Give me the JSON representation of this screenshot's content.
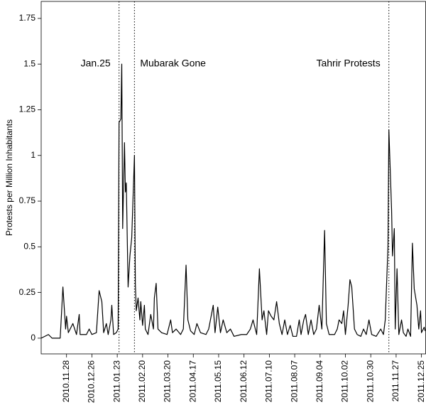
{
  "chart_data": {
    "type": "line",
    "ylabel": "Protests per Million Inhabitants",
    "xlim": [
      "2010.10.31",
      "2011.12.30"
    ],
    "ylim": [
      -0.086,
      1.843
    ],
    "yticks": [
      0,
      0.25,
      0.5,
      0.75,
      1,
      1.25,
      1.5,
      1.75
    ],
    "xticks": [
      "2010.11.28",
      "2010.12.26",
      "2011.01.23",
      "2011.02.20",
      "2011.03.20",
      "2011.04.17",
      "2011.05.15",
      "2011.06.12",
      "2011.07.10",
      "2011.08.07",
      "2011.09.04",
      "2011.10.02",
      "2011.10.30",
      "2011.11.27",
      "2011.12.25"
    ],
    "grid": false,
    "events": [
      {
        "x": "2011.01.25",
        "label": "Jan.25",
        "side": "left"
      },
      {
        "x": "2011.02.11",
        "label": "Mubarak Gone",
        "side": "right"
      },
      {
        "x": "2011.11.19",
        "label": "Tahrir Protests",
        "side": "left"
      }
    ],
    "series": [
      {
        "color": "#000000",
        "x": [
          "2010.10.31",
          "2010.11.08",
          "2010.11.12",
          "2010.11.21",
          "2010.11.24",
          "2010.11.27",
          "2010.11.28",
          "2010.11.30",
          "2010.12.05",
          "2010.12.09",
          "2010.12.12",
          "2010.12.13",
          "2010.12.20",
          "2010.12.23",
          "2010.12.26",
          "2010.12.31",
          "2011.01.03",
          "2011.01.06",
          "2011.01.08",
          "2011.01.11",
          "2011.01.13",
          "2011.01.16",
          "2011.01.17",
          "2011.01.19",
          "2011.01.22",
          "2011.01.24",
          "2011.01.25",
          "2011.01.27",
          "2011.01.28",
          "2011.01.29",
          "2011.01.31",
          "2011.02.01",
          "2011.02.02",
          "2011.02.04",
          "2011.02.06",
          "2011.02.08",
          "2011.02.11",
          "2011.02.12",
          "2011.02.13",
          "2011.02.15",
          "2011.02.17",
          "2011.02.18",
          "2011.02.20",
          "2011.02.22",
          "2011.02.23",
          "2011.02.26",
          "2011.03.01",
          "2011.03.04",
          "2011.03.05",
          "2011.03.07",
          "2011.03.09",
          "2011.03.13",
          "2011.03.19",
          "2011.03.23",
          "2011.03.25",
          "2011.03.29",
          "2011.04.03",
          "2011.04.06",
          "2011.04.09",
          "2011.04.11",
          "2011.04.14",
          "2011.04.18",
          "2011.04.21",
          "2011.04.25",
          "2011.05.01",
          "2011.05.04",
          "2011.05.09",
          "2011.05.11",
          "2011.05.14",
          "2011.05.17",
          "2011.05.20",
          "2011.05.24",
          "2011.05.28",
          "2011.06.01",
          "2011.06.09",
          "2011.06.15",
          "2011.06.19",
          "2011.06.22",
          "2011.06.26",
          "2011.06.29",
          "2011.07.02",
          "2011.07.04",
          "2011.07.07",
          "2011.07.09",
          "2011.07.12",
          "2011.07.15",
          "2011.07.18",
          "2011.07.21",
          "2011.07.24",
          "2011.07.27",
          "2011.07.30",
          "2011.08.02",
          "2011.08.05",
          "2011.08.09",
          "2011.08.12",
          "2011.08.14",
          "2011.08.17",
          "2011.08.19",
          "2011.08.22",
          "2011.08.25",
          "2011.08.28",
          "2011.08.31",
          "2011.09.03",
          "2011.09.06",
          "2011.09.09",
          "2011.09.11",
          "2011.09.14",
          "2011.09.20",
          "2011.09.23",
          "2011.09.25",
          "2011.09.28",
          "2011.09.30",
          "2011.10.02",
          "2011.10.05",
          "2011.10.07",
          "2011.10.09",
          "2011.10.12",
          "2011.10.15",
          "2011.10.19",
          "2011.10.22",
          "2011.10.25",
          "2011.10.28",
          "2011.10.31",
          "2011.11.05",
          "2011.11.10",
          "2011.11.13",
          "2011.11.15",
          "2011.11.18",
          "2011.11.19",
          "2011.11.22",
          "2011.11.23",
          "2011.11.25",
          "2011.11.26",
          "2011.11.28",
          "2011.11.30",
          "2011.12.03",
          "2011.12.05",
          "2011.12.08",
          "2011.12.10",
          "2011.12.13",
          "2011.12.15",
          "2011.12.17",
          "2011.12.20",
          "2011.12.22",
          "2011.12.24",
          "2011.12.25",
          "2011.12.28",
          "2011.12.29"
        ],
        "values": [
          0,
          0.02,
          0,
          0,
          0.28,
          0.05,
          0.12,
          0.03,
          0.08,
          0.02,
          0.13,
          0.02,
          0.02,
          0.05,
          0.02,
          0.03,
          0.26,
          0.2,
          0.03,
          0.08,
          0.02,
          0.1,
          0.18,
          0.02,
          0.03,
          0.05,
          1.18,
          1.2,
          1.5,
          0.6,
          1.07,
          0.8,
          0.85,
          0.28,
          0.45,
          0.55,
          1.0,
          0.3,
          0.15,
          0.22,
          0.1,
          0.2,
          0.07,
          0.18,
          0.05,
          0.02,
          0.13,
          0.05,
          0.22,
          0.3,
          0.05,
          0.03,
          0.02,
          0.1,
          0.03,
          0.05,
          0.02,
          0.05,
          0.4,
          0.1,
          0.04,
          0.02,
          0.08,
          0.03,
          0.02,
          0.05,
          0.18,
          0.03,
          0.17,
          0.03,
          0.1,
          0.03,
          0.05,
          0.01,
          0.02,
          0.02,
          0.05,
          0.1,
          0.02,
          0.38,
          0.1,
          0.15,
          0.02,
          0.15,
          0.12,
          0.1,
          0.2,
          0.08,
          0.02,
          0.1,
          0.02,
          0.07,
          0.01,
          0.01,
          0.1,
          0.02,
          0.1,
          0.13,
          0.02,
          0.1,
          0.02,
          0.05,
          0.18,
          0.05,
          0.59,
          0.08,
          0.02,
          0.02,
          0.05,
          0.1,
          0.08,
          0.15,
          0.02,
          0.18,
          0.32,
          0.28,
          0.05,
          0.02,
          0.01,
          0.05,
          0.02,
          0.1,
          0.02,
          0.01,
          0.05,
          0.02,
          0.1,
          0.5,
          1.14,
          0.7,
          0.45,
          0.6,
          0.05,
          0.38,
          0.02,
          0.1,
          0.03,
          0.01,
          0.05,
          0.01,
          0.52,
          0.27,
          0.18,
          0.05,
          0.15,
          0.03,
          0.06,
          0.04
        ]
      }
    ]
  }
}
